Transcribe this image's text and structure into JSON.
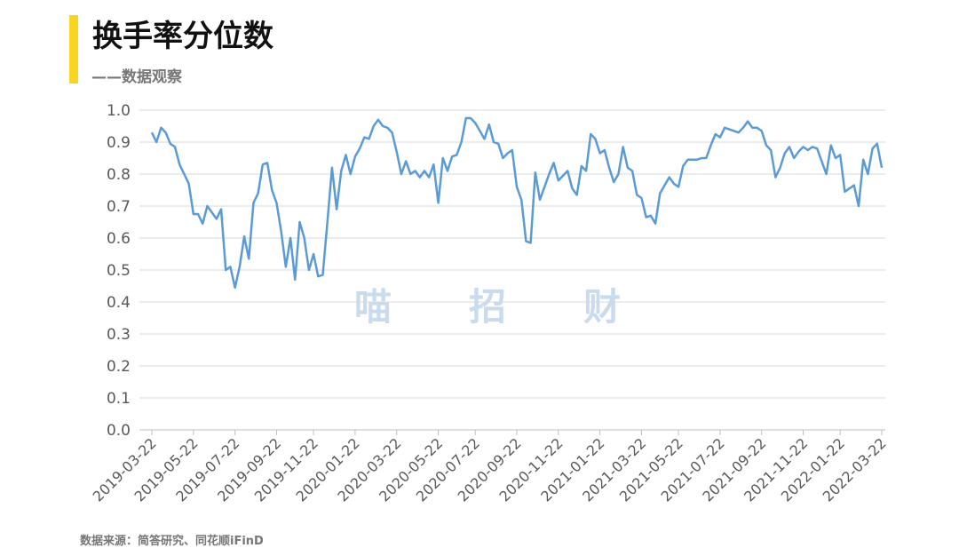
{
  "title": "换手率分位数",
  "subtitle": "——数据观察",
  "watermark": [
    "喵",
    "招",
    "财"
  ],
  "source": "数据来源：简答研究、同花顺iFinD",
  "chart_data": {
    "type": "line",
    "categories": [
      "2019-03-22",
      null,
      null,
      null,
      null,
      null,
      null,
      null,
      null,
      "2019-05-22",
      null,
      null,
      null,
      null,
      null,
      null,
      null,
      null,
      "2019-07-22",
      null,
      null,
      null,
      null,
      null,
      null,
      null,
      null,
      "2019-09-22",
      null,
      null,
      null,
      null,
      null,
      null,
      null,
      "2019-11-22",
      null,
      null,
      null,
      null,
      null,
      null,
      null,
      null,
      "2020-01-22",
      null,
      null,
      null,
      null,
      null,
      null,
      null,
      null,
      "2020-03-22",
      null,
      null,
      null,
      null,
      null,
      null,
      null,
      null,
      "2020-05-22",
      null,
      null,
      null,
      null,
      null,
      null,
      null,
      "2020-07-22",
      null,
      null,
      null,
      null,
      null,
      null,
      null,
      null,
      "2020-09-22",
      null,
      null,
      null,
      null,
      null,
      null,
      null,
      null,
      "2020-11-22",
      null,
      null,
      null,
      null,
      null,
      null,
      null,
      null,
      "2021-01-22",
      null,
      null,
      null,
      null,
      null,
      null,
      null,
      null,
      "2021-03-22",
      null,
      null,
      null,
      null,
      null,
      null,
      null,
      "2021-05-22",
      null,
      null,
      null,
      null,
      null,
      null,
      null,
      null,
      "2021-07-22",
      null,
      null,
      null,
      null,
      null,
      null,
      null,
      null,
      "2021-09-22",
      null,
      null,
      null,
      null,
      null,
      null,
      null,
      null,
      "2021-11-22",
      null,
      null,
      null,
      null,
      null,
      null,
      null,
      "2022-01-22",
      null,
      null,
      null,
      null,
      null,
      null,
      null,
      null,
      "2022-03-22"
    ],
    "series": [
      {
        "color": "#5b9bd5",
        "values": [
          0.93,
          0.9,
          0.945,
          0.93,
          0.895,
          0.885,
          0.83,
          0.8,
          0.77,
          0.675,
          0.675,
          0.645,
          0.7,
          0.68,
          0.66,
          0.69,
          0.5,
          0.51,
          0.445,
          0.51,
          0.605,
          0.535,
          0.71,
          0.74,
          0.83,
          0.835,
          0.75,
          0.71,
          0.62,
          0.51,
          0.6,
          0.47,
          0.65,
          0.6,
          0.5,
          0.55,
          0.48,
          0.485,
          0.65,
          0.82,
          0.69,
          0.81,
          0.86,
          0.8,
          0.855,
          0.88,
          0.915,
          0.91,
          0.95,
          0.97,
          0.95,
          0.945,
          0.93,
          0.87,
          0.8,
          0.84,
          0.8,
          0.81,
          0.79,
          0.81,
          0.79,
          0.83,
          0.71,
          0.85,
          0.81,
          0.855,
          0.86,
          0.9,
          0.975,
          0.975,
          0.96,
          0.935,
          0.91,
          0.955,
          0.9,
          0.895,
          0.85,
          0.865,
          0.875,
          0.76,
          0.72,
          0.59,
          0.585,
          0.805,
          0.72,
          0.76,
          0.8,
          0.835,
          0.78,
          0.795,
          0.81,
          0.755,
          0.735,
          0.825,
          0.81,
          0.925,
          0.91,
          0.865,
          0.875,
          0.82,
          0.775,
          0.8,
          0.885,
          0.82,
          0.81,
          0.735,
          0.725,
          0.665,
          0.67,
          0.645,
          0.74,
          0.765,
          0.79,
          0.77,
          0.76,
          0.825,
          0.845,
          0.845,
          0.845,
          0.85,
          0.85,
          0.89,
          0.925,
          0.915,
          0.945,
          0.94,
          0.935,
          0.93,
          0.945,
          0.965,
          0.945,
          0.945,
          0.935,
          0.89,
          0.875,
          0.79,
          0.82,
          0.865,
          0.885,
          0.85,
          0.87,
          0.885,
          0.875,
          0.885,
          0.88,
          0.84,
          0.8,
          0.89,
          0.85,
          0.86,
          0.745,
          0.755,
          0.765,
          0.7,
          0.845,
          0.8,
          0.88,
          0.895,
          0.82
        ]
      }
    ],
    "ylim": [
      0,
      1
    ],
    "yticks": [
      {
        "value": 0,
        "label": "0.0"
      },
      {
        "value": 0.1,
        "label": "0.1"
      },
      {
        "value": 0.2,
        "label": "0.2"
      },
      {
        "value": 0.3,
        "label": "0.3"
      },
      {
        "value": 0.4,
        "label": "0.4"
      },
      {
        "value": 0.5,
        "label": "0.5"
      },
      {
        "value": 0.6,
        "label": "0.6"
      },
      {
        "value": 0.7,
        "label": "0.7"
      },
      {
        "value": 0.8,
        "label": "0.8"
      },
      {
        "value": 0.9,
        "label": "0.9"
      },
      {
        "value": 1,
        "label": "1.0"
      }
    ],
    "grid": true
  }
}
